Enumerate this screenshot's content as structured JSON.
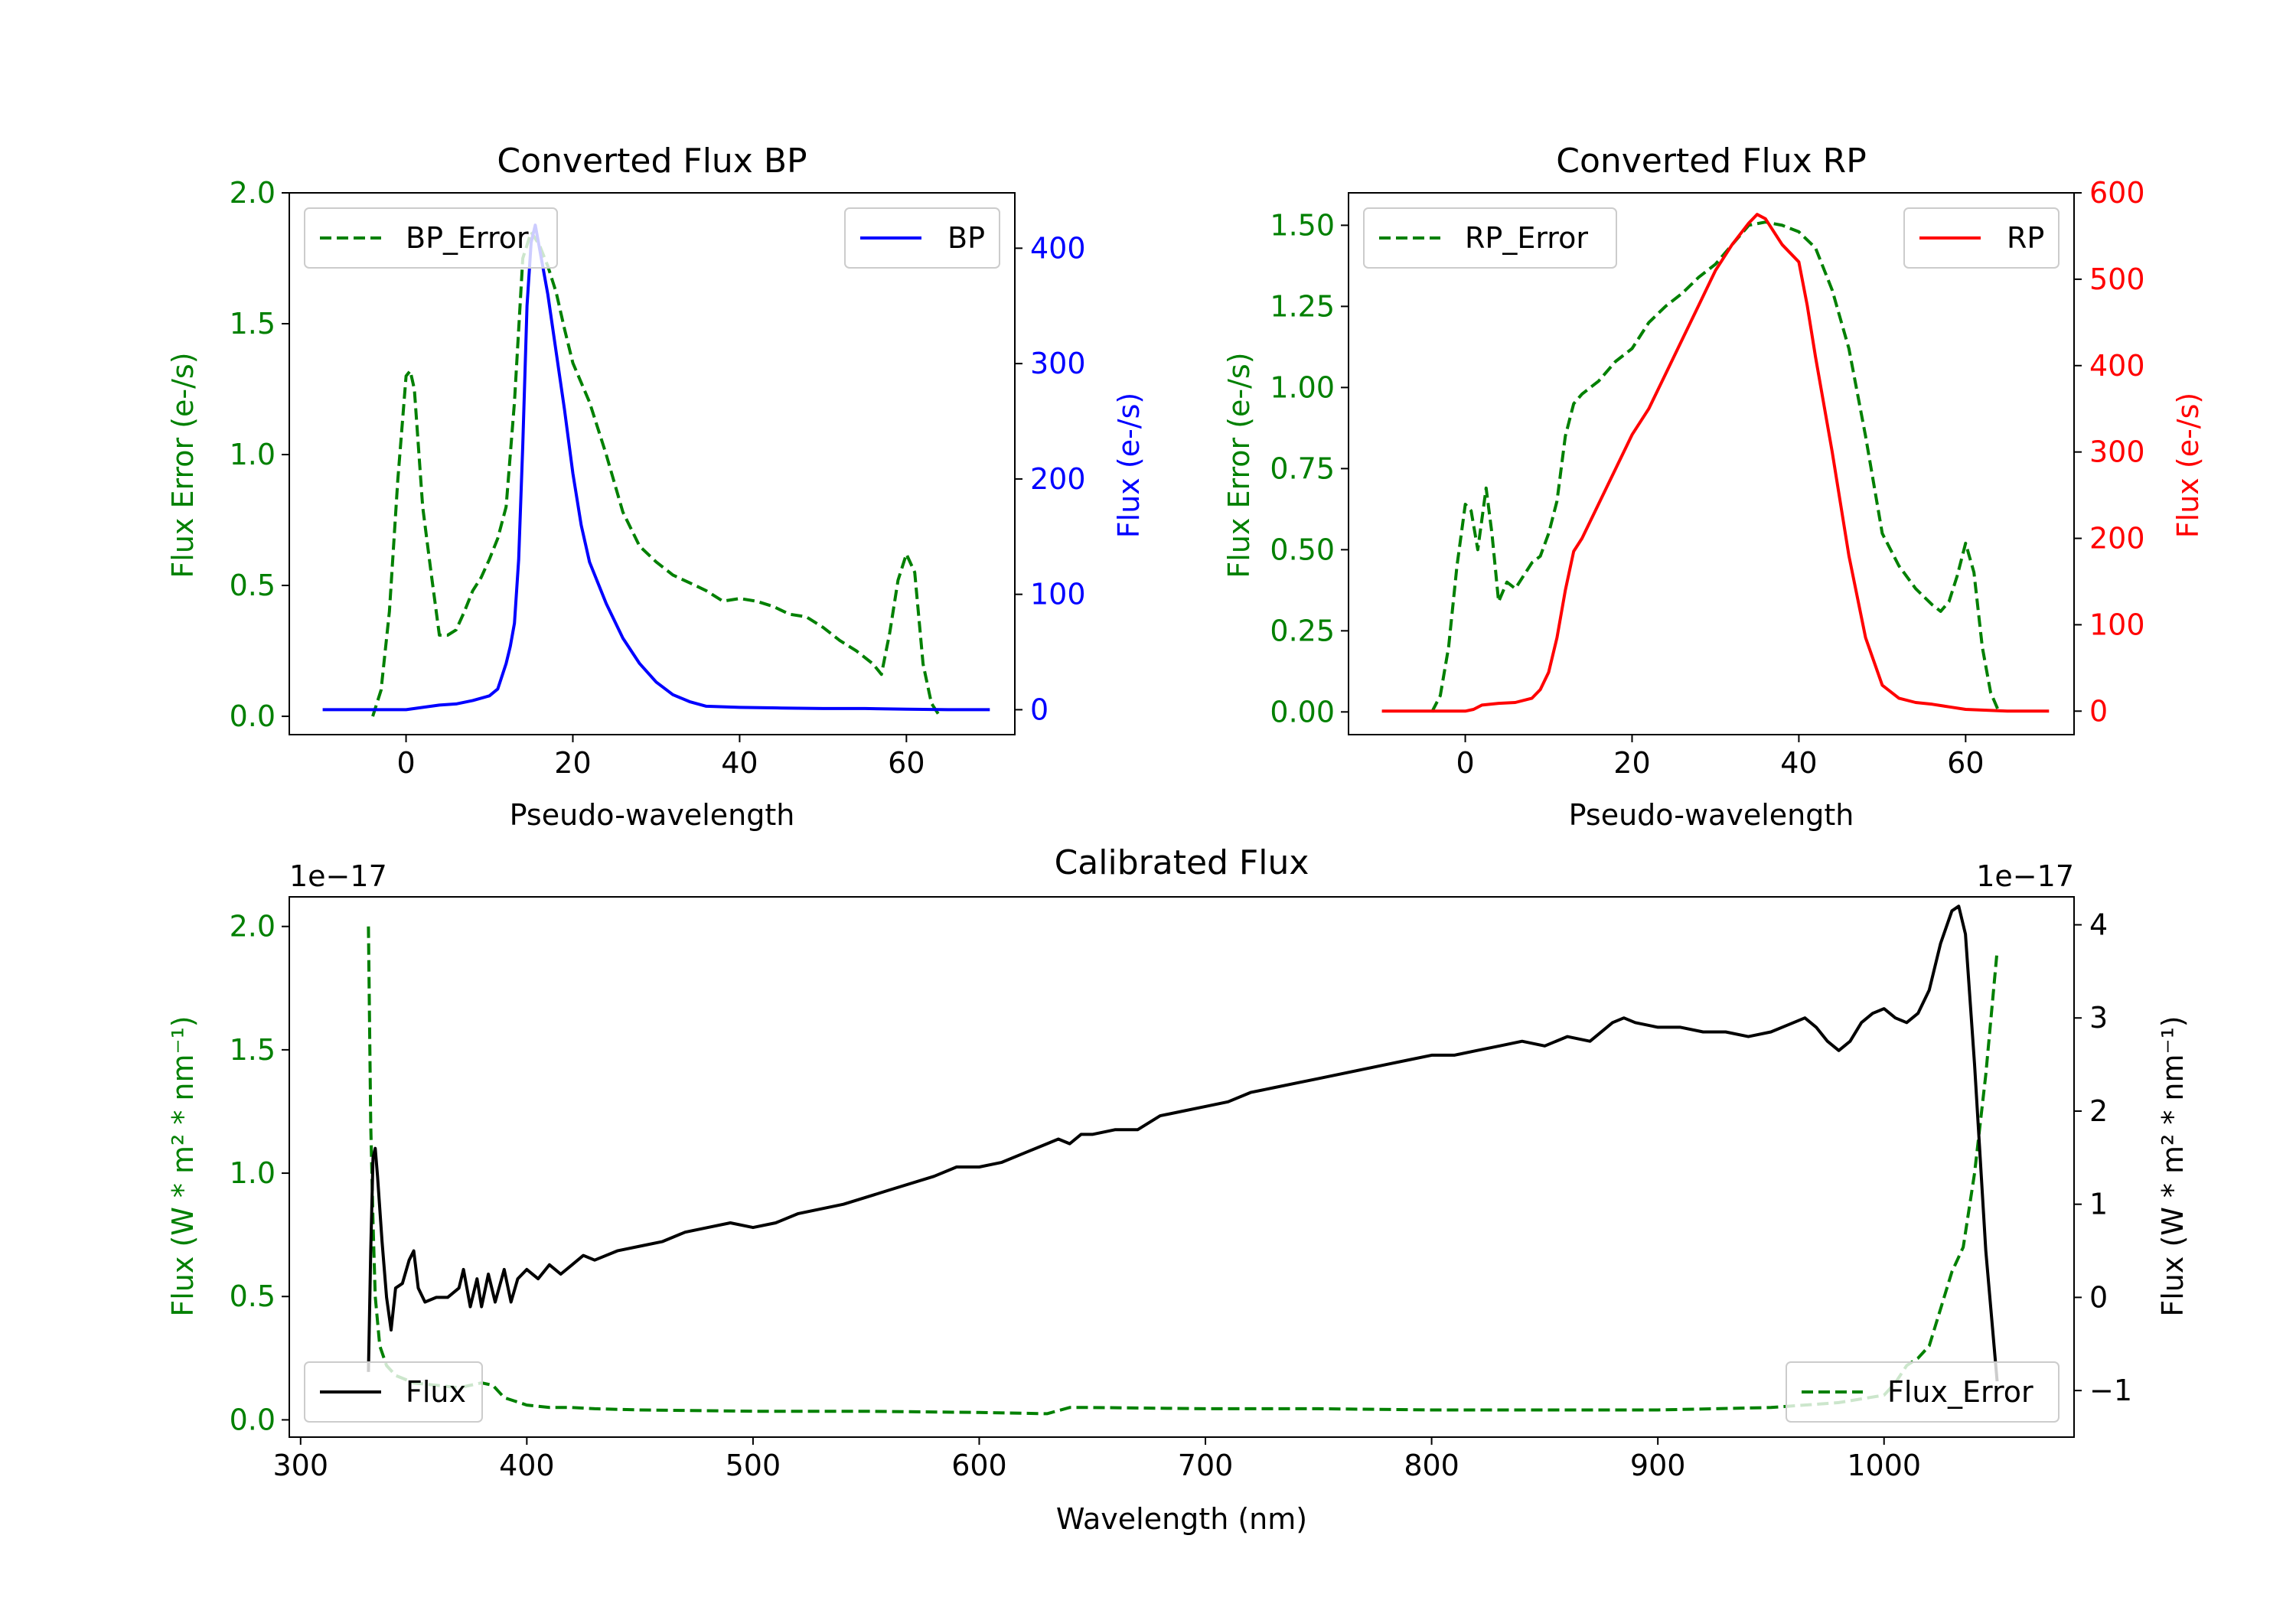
{
  "colors": {
    "bp": "#0000ff",
    "rp": "#ff0000",
    "error": "#008000",
    "flux": "#000000",
    "axis": "#000000"
  },
  "chart_data": [
    {
      "id": "bp",
      "type": "line",
      "title": "Converted Flux BP",
      "xlabel": "Pseudo-wavelength",
      "ylabel_left": "Flux Error (e-/s)",
      "ylabel_right": "Flux (e-/s)",
      "xlim": [
        -14,
        73
      ],
      "ylim_left": [
        -0.07,
        2.0
      ],
      "ylim_right": [
        -21.6,
        448
      ],
      "xticks": [
        0,
        20,
        40,
        60
      ],
      "yticks_left": [
        0.0,
        0.5,
        1.0,
        1.5,
        2.0
      ],
      "ytick_labels_left": [
        "0.0",
        "0.5",
        "1.0",
        "1.5",
        "2.0"
      ],
      "yticks_right": [
        0,
        100,
        200,
        300,
        400
      ],
      "ytick_labels_right": [
        "0",
        "100",
        "200",
        "300",
        "400"
      ],
      "legend_left": {
        "label": "BP_Error",
        "location": "upper left"
      },
      "legend_right": {
        "label": "BP",
        "location": "upper right"
      },
      "series": [
        {
          "name": "BP_Error",
          "axis": "left",
          "style": "dashed",
          "color": "#008000",
          "x": [
            -4,
            -3,
            -2,
            -1,
            0,
            0.5,
            1,
            2,
            3,
            4,
            5,
            6,
            7,
            8,
            9,
            10,
            11,
            12,
            13,
            14,
            15,
            16,
            17,
            18,
            19,
            20,
            22,
            24,
            26,
            28,
            30,
            32,
            34,
            36,
            38,
            40,
            42,
            44,
            46,
            48,
            50,
            52,
            54,
            56,
            57,
            58,
            59,
            60,
            61,
            62,
            63,
            64
          ],
          "y": [
            0.0,
            0.1,
            0.4,
            0.9,
            1.3,
            1.32,
            1.25,
            0.8,
            0.55,
            0.31,
            0.31,
            0.33,
            0.4,
            0.48,
            0.53,
            0.6,
            0.68,
            0.8,
            1.2,
            1.75,
            1.85,
            1.8,
            1.72,
            1.62,
            1.48,
            1.35,
            1.2,
            1.0,
            0.78,
            0.65,
            0.59,
            0.54,
            0.51,
            0.48,
            0.44,
            0.45,
            0.44,
            0.42,
            0.39,
            0.38,
            0.34,
            0.29,
            0.25,
            0.2,
            0.16,
            0.32,
            0.52,
            0.62,
            0.55,
            0.2,
            0.05,
            0.0
          ]
        },
        {
          "name": "BP",
          "axis": "right",
          "style": "solid",
          "color": "#0000ff",
          "x": [
            -10,
            -5,
            0,
            2,
            4,
            6,
            8,
            10,
            11,
            12,
            12.5,
            13,
            13.5,
            14,
            14.5,
            15,
            15.5,
            16,
            17,
            18,
            19,
            20,
            21,
            22,
            24,
            26,
            28,
            30,
            32,
            34,
            36,
            40,
            45,
            50,
            55,
            60,
            65,
            70
          ],
          "y": [
            0,
            0,
            0,
            2,
            4,
            5,
            8,
            12,
            18,
            40,
            55,
            75,
            130,
            230,
            350,
            405,
            420,
            400,
            360,
            310,
            260,
            205,
            160,
            128,
            92,
            62,
            40,
            24,
            13,
            7,
            3,
            2,
            1.5,
            1,
            1,
            0.5,
            0,
            0
          ]
        }
      ]
    },
    {
      "id": "rp",
      "type": "line",
      "title": "Converted Flux RP",
      "xlabel": "Pseudo-wavelength",
      "ylabel_left": "Flux Error (e-/s)",
      "ylabel_right": "Flux (e-/s)",
      "xlim": [
        -14,
        73
      ],
      "ylim_left": [
        -0.07,
        1.6
      ],
      "ylim_right": [
        -27.2,
        600
      ],
      "xticks": [
        0,
        20,
        40,
        60
      ],
      "yticks_left": [
        0.0,
        0.25,
        0.5,
        0.75,
        1.0,
        1.25,
        1.5
      ],
      "ytick_labels_left": [
        "0.00",
        "0.25",
        "0.50",
        "0.75",
        "1.00",
        "1.25",
        "1.50"
      ],
      "yticks_right": [
        0,
        100,
        200,
        300,
        400,
        500,
        600
      ],
      "ytick_labels_right": [
        "0",
        "100",
        "200",
        "300",
        "400",
        "500",
        "600"
      ],
      "legend_left": {
        "label": "RP_Error",
        "location": "upper left"
      },
      "legend_right": {
        "label": "RP",
        "location": "upper right"
      },
      "series": [
        {
          "name": "RP_Error",
          "axis": "left",
          "style": "dashed",
          "color": "#008000",
          "x": [
            -4,
            -3,
            -2,
            -1,
            0,
            0.7,
            1.5,
            2.5,
            3.2,
            4,
            5,
            6,
            7,
            8,
            9,
            10,
            11,
            12,
            13,
            14,
            16,
            18,
            20,
            22,
            24,
            26,
            28,
            30,
            32,
            34,
            36,
            38,
            40,
            42,
            44,
            46,
            48,
            50,
            52,
            54,
            56,
            57,
            58,
            59,
            60,
            61,
            62,
            63,
            64
          ],
          "y": [
            0.0,
            0.05,
            0.2,
            0.45,
            0.64,
            0.62,
            0.5,
            0.69,
            0.55,
            0.34,
            0.4,
            0.38,
            0.42,
            0.46,
            0.48,
            0.55,
            0.65,
            0.85,
            0.95,
            0.98,
            1.02,
            1.08,
            1.12,
            1.2,
            1.25,
            1.29,
            1.34,
            1.38,
            1.44,
            1.5,
            1.51,
            1.5,
            1.48,
            1.43,
            1.3,
            1.12,
            0.85,
            0.55,
            0.45,
            0.38,
            0.33,
            0.31,
            0.34,
            0.42,
            0.52,
            0.43,
            0.2,
            0.06,
            0.0
          ]
        },
        {
          "name": "RP",
          "axis": "right",
          "style": "solid",
          "color": "#ff0000",
          "x": [
            -10,
            -5,
            -2,
            0,
            1,
            2,
            4,
            6,
            8,
            9,
            10,
            11,
            12,
            13,
            14,
            16,
            18,
            20,
            22,
            24,
            26,
            28,
            30,
            32,
            34,
            35,
            36,
            37,
            38,
            40,
            41,
            42,
            44,
            46,
            48,
            50,
            52,
            54,
            56,
            58,
            60,
            65,
            70
          ],
          "y": [
            0,
            0,
            0,
            0,
            2,
            7,
            9,
            10,
            15,
            25,
            45,
            85,
            140,
            185,
            200,
            240,
            280,
            320,
            350,
            390,
            430,
            470,
            510,
            540,
            565,
            575,
            570,
            555,
            540,
            520,
            470,
            410,
            300,
            180,
            85,
            30,
            15,
            10,
            8,
            5,
            2,
            0,
            0
          ]
        }
      ]
    },
    {
      "id": "calibrated",
      "type": "line",
      "title": "Calibrated Flux",
      "xlabel": "Wavelength (nm)",
      "ylabel_left": "Flux (W * m² * nm⁻¹)",
      "ylabel_right": "Flux (W * m² * nm⁻¹)",
      "offset_left": "1e−17",
      "offset_right": "1e−17",
      "xlim": [
        295,
        1084
      ],
      "ylim_left": [
        -0.07,
        2.12
      ],
      "ylim_right": [
        -1.5,
        4.3
      ],
      "xticks": [
        300,
        400,
        500,
        600,
        700,
        800,
        900,
        1000
      ],
      "yticks_left": [
        0.0,
        0.5,
        1.0,
        1.5,
        2.0
      ],
      "ytick_labels_left": [
        "0.0",
        "0.5",
        "1.0",
        "1.5",
        "2.0"
      ],
      "yticks_right": [
        -1,
        0,
        1,
        2,
        3,
        4
      ],
      "ytick_labels_right": [
        "−1",
        "0",
        "1",
        "2",
        "3",
        "4"
      ],
      "legend_left": {
        "label": "Flux",
        "location": "lower left"
      },
      "legend_right": {
        "label": "Flux_Error",
        "location": "lower right"
      },
      "series": [
        {
          "name": "Flux_Error",
          "axis": "left",
          "style": "dashed",
          "color": "#008000",
          "x": [
            330,
            331,
            332,
            333,
            335,
            338,
            342,
            350,
            360,
            370,
            380,
            385,
            390,
            400,
            410,
            420,
            430,
            450,
            500,
            550,
            600,
            630,
            640,
            650,
            700,
            750,
            800,
            850,
            900,
            950,
            980,
            1000,
            1005,
            1010,
            1015,
            1020,
            1025,
            1030,
            1035,
            1040,
            1045,
            1050
          ],
          "y": [
            2.0,
            1.2,
            0.8,
            0.5,
            0.3,
            0.22,
            0.18,
            0.15,
            0.14,
            0.13,
            0.15,
            0.14,
            0.09,
            0.06,
            0.05,
            0.05,
            0.045,
            0.04,
            0.035,
            0.035,
            0.03,
            0.025,
            0.05,
            0.05,
            0.045,
            0.045,
            0.04,
            0.04,
            0.04,
            0.05,
            0.07,
            0.1,
            0.15,
            0.22,
            0.25,
            0.3,
            0.45,
            0.6,
            0.7,
            1.0,
            1.4,
            1.9
          ]
        },
        {
          "name": "Flux",
          "axis": "right",
          "style": "solid",
          "color": "#000000",
          "x": [
            330,
            331,
            332,
            333,
            334,
            336,
            338,
            340,
            342,
            345,
            348,
            350,
            352,
            355,
            360,
            365,
            370,
            372,
            375,
            378,
            380,
            383,
            386,
            390,
            393,
            396,
            400,
            405,
            410,
            415,
            420,
            425,
            430,
            440,
            450,
            460,
            470,
            480,
            490,
            500,
            510,
            520,
            540,
            560,
            580,
            590,
            600,
            610,
            620,
            630,
            635,
            640,
            645,
            650,
            660,
            670,
            680,
            690,
            700,
            710,
            720,
            730,
            740,
            750,
            760,
            770,
            780,
            790,
            800,
            810,
            820,
            830,
            840,
            850,
            860,
            870,
            880,
            885,
            890,
            900,
            910,
            920,
            930,
            940,
            950,
            960,
            965,
            970,
            975,
            980,
            985,
            990,
            995,
            1000,
            1005,
            1010,
            1015,
            1020,
            1025,
            1030,
            1033,
            1036,
            1040,
            1045,
            1050
          ],
          "y": [
            -0.8,
            0.5,
            1.5,
            1.6,
            1.3,
            0.6,
            0.0,
            -0.35,
            0.1,
            0.15,
            0.4,
            0.5,
            0.1,
            -0.05,
            0.0,
            0.0,
            0.1,
            0.3,
            -0.1,
            0.2,
            -0.1,
            0.25,
            -0.05,
            0.3,
            -0.05,
            0.2,
            0.3,
            0.2,
            0.35,
            0.25,
            0.35,
            0.45,
            0.4,
            0.5,
            0.55,
            0.6,
            0.7,
            0.75,
            0.8,
            0.75,
            0.8,
            0.9,
            1.0,
            1.15,
            1.3,
            1.4,
            1.4,
            1.45,
            1.55,
            1.65,
            1.7,
            1.65,
            1.75,
            1.75,
            1.8,
            1.8,
            1.95,
            2.0,
            2.05,
            2.1,
            2.2,
            2.25,
            2.3,
            2.35,
            2.4,
            2.45,
            2.5,
            2.55,
            2.6,
            2.6,
            2.65,
            2.7,
            2.75,
            2.7,
            2.8,
            2.75,
            2.95,
            3.0,
            2.95,
            2.9,
            2.9,
            2.85,
            2.85,
            2.8,
            2.85,
            2.95,
            3.0,
            2.9,
            2.75,
            2.65,
            2.75,
            2.95,
            3.05,
            3.1,
            3.0,
            2.95,
            3.05,
            3.3,
            3.8,
            4.15,
            4.2,
            3.9,
            2.5,
            0.5,
            -0.9
          ]
        }
      ]
    }
  ]
}
